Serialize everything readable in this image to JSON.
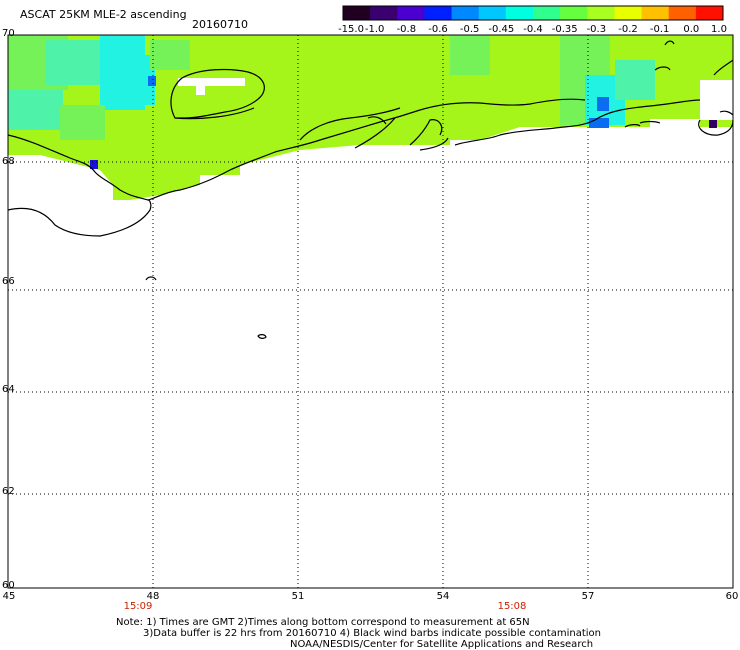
{
  "header": {
    "title": "ASCAT 25KM MLE-2 ascending",
    "date": "20160710"
  },
  "colorbar": {
    "labels": [
      "-15.0",
      "-1.0",
      "-0.8",
      "-0.6",
      "-0.5",
      "-0.45",
      "-0.4",
      "-0.35",
      "-0.3",
      "-0.2",
      "-0.1",
      "0.0",
      "1.0"
    ],
    "colors": [
      "#200020",
      "#3a0070",
      "#4a00d0",
      "#0020ff",
      "#0088ff",
      "#00c8ff",
      "#00ffe0",
      "#30ff90",
      "#66ff40",
      "#a8ff20",
      "#e8ff00",
      "#ffc000",
      "#ff6000",
      "#ff1000"
    ]
  },
  "axes": {
    "lat_labels": [
      "70",
      "68",
      "66",
      "64",
      "62",
      "60"
    ],
    "lon_labels": [
      "45",
      "48",
      "51",
      "54",
      "57",
      "60"
    ],
    "time_labels": [
      "15:09",
      "15:08"
    ]
  },
  "field_colors": {
    "base": "#a6f51a",
    "cyan": "#22f2e2",
    "teal": "#4ef2a8",
    "light_green": "#74f258",
    "blue": "#0a6cf0",
    "dark_blue": "#1a10e0",
    "purple": "#320060",
    "coast": "#000000",
    "grid": "#000000"
  },
  "footer": {
    "line1": "Note: 1) Times are GMT 2)Times along bottom correspond to measurement at 65N",
    "line2": "3)Data buffer is 22 hrs from 20160710 4) Black wind barbs indicate possible contamination",
    "line3": "NOAA/NESDIS/Center for Satellite Applications and Research"
  }
}
